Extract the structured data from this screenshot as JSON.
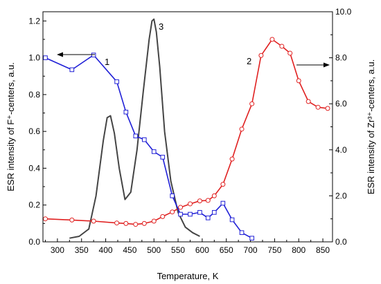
{
  "chart_data": {
    "type": "line",
    "xlabel": "Temperature, K",
    "ylabel_left": "ESR intensity of F⁺-centers, a.u.",
    "ylabel_right": "ESR intensity of Zr³⁺-centers, a.u.",
    "xlim": [
      270,
      870
    ],
    "ylim_left": [
      0,
      1.25
    ],
    "ylim_right": [
      0,
      10
    ],
    "x_ticks": [
      "300",
      "350",
      "400",
      "450",
      "500",
      "550",
      "600",
      "650",
      "700",
      "750",
      "800",
      "850"
    ],
    "y_ticks_left": [
      "0.0",
      "0.2",
      "0.4",
      "0.6",
      "0.8",
      "1.0",
      "1.2"
    ],
    "y_ticks_right": [
      "0.0",
      "2.0",
      "4.0",
      "6.0",
      "8.0",
      "10.0"
    ],
    "series": [
      {
        "label": "1",
        "axis": "left",
        "color": "#1f1fd6",
        "marker": "square",
        "x": [
          275,
          330,
          375,
          423,
          442,
          462,
          480,
          500,
          518,
          538,
          555,
          575,
          595,
          612,
          625,
          643,
          662,
          682,
          703
        ],
        "y": [
          1.0,
          0.935,
          1.015,
          0.87,
          0.705,
          0.575,
          0.555,
          0.49,
          0.46,
          0.25,
          0.15,
          0.15,
          0.16,
          0.13,
          0.16,
          0.21,
          0.12,
          0.05,
          0.02
        ]
      },
      {
        "label": "2",
        "axis": "right",
        "color": "#e02020",
        "marker": "circle",
        "x": [
          275,
          330,
          375,
          423,
          442,
          462,
          480,
          500,
          518,
          538,
          555,
          575,
          595,
          612,
          625,
          643,
          662,
          682,
          703,
          722,
          745,
          765,
          782,
          800,
          820,
          840,
          860
        ],
        "y": [
          1.0,
          0.95,
          0.9,
          0.82,
          0.8,
          0.76,
          0.8,
          0.9,
          1.1,
          1.3,
          1.5,
          1.65,
          1.78,
          1.8,
          2.0,
          2.5,
          3.6,
          4.9,
          6.0,
          8.1,
          8.8,
          8.5,
          8.2,
          7.0,
          6.1,
          5.85,
          5.8
        ]
      },
      {
        "label": "3",
        "axis": "left",
        "color": "#444444",
        "marker": "none",
        "x": [
          325,
          345,
          365,
          380,
          395,
          403,
          410,
          418,
          428,
          440,
          452,
          465,
          478,
          490,
          496,
          500,
          505,
          512,
          522,
          535,
          550,
          565,
          580,
          595
        ],
        "y": [
          0.02,
          0.03,
          0.07,
          0.25,
          0.55,
          0.675,
          0.685,
          0.59,
          0.4,
          0.23,
          0.27,
          0.5,
          0.82,
          1.1,
          1.2,
          1.21,
          1.14,
          0.95,
          0.6,
          0.33,
          0.16,
          0.08,
          0.05,
          0.03
        ]
      }
    ]
  }
}
